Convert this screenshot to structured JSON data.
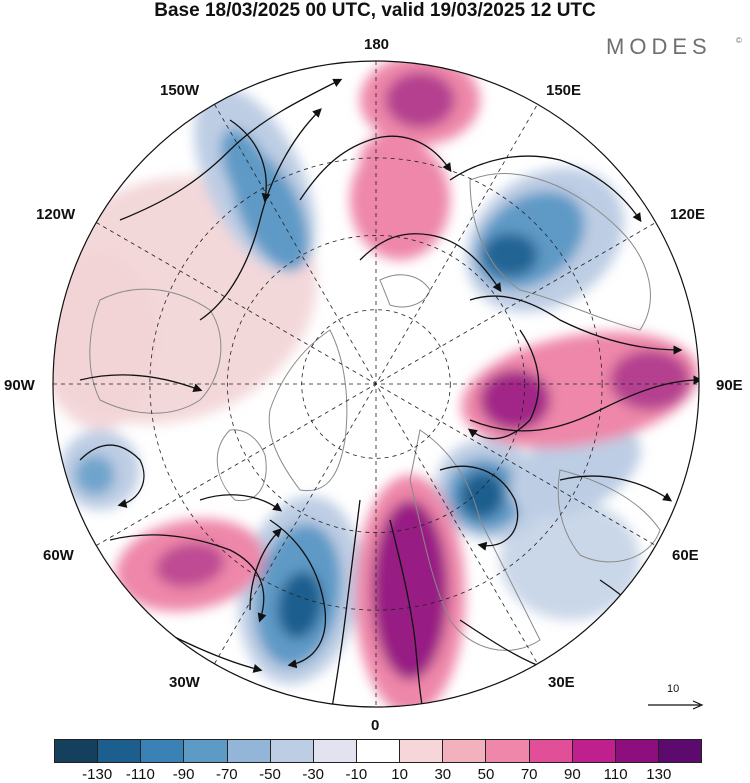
{
  "title": "Base 18/03/2025 00 UTC, valid 19/03/2025 12 UTC",
  "brand": "MODES",
  "brand_mark": "©",
  "longitude_labels": {
    "top": "180",
    "bottom": "0",
    "left": "90W",
    "right": "90E",
    "upper_left_1": "150W",
    "upper_left_2": "120W",
    "lower_left_1": "60W",
    "lower_left_2": "30W",
    "upper_right_1": "150E",
    "upper_right_2": "120E",
    "lower_right_1": "60E",
    "lower_right_2": "30E"
  },
  "vector_reference": {
    "label": "10"
  },
  "colorbar": {
    "colors": [
      "#14405e",
      "#1c5f8f",
      "#3a82b6",
      "#5e9ac6",
      "#93b5d8",
      "#bdcde4",
      "#e3e3ef",
      "#ffffff",
      "#f7d6d9",
      "#f2b1bd",
      "#ee87a9",
      "#e04f98",
      "#c01f8e",
      "#8d0f7e",
      "#5c0a6e"
    ],
    "tick_labels": [
      "-130",
      "-110",
      "-90",
      "-70",
      "-50",
      "-30",
      "-10",
      "10",
      "30",
      "50",
      "70",
      "90",
      "110",
      "130"
    ]
  },
  "anomaly_colors": {
    "strong_negative": "#1c5f8f",
    "moderate_negative": "#5e9ac6",
    "weak_negative": "#bdcde4",
    "weak_positive": "#f2d4d6",
    "moderate_positive": "#ee87a9",
    "strong_positive": "#8d0f7e",
    "land_outline": "#8a8a8a"
  }
}
